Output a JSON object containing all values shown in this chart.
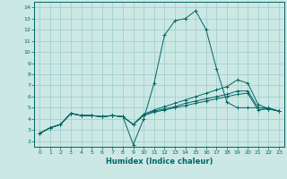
{
  "xlabel": "Humidex (Indice chaleur)",
  "bg_color": "#cce8e4",
  "grid_color": "#99cccc",
  "line_color": "#006666",
  "xlim": [
    -0.5,
    23.5
  ],
  "ylim": [
    1.5,
    14.5
  ],
  "xticks": [
    0,
    1,
    2,
    3,
    4,
    5,
    6,
    7,
    8,
    9,
    10,
    11,
    12,
    13,
    14,
    15,
    16,
    17,
    18,
    19,
    20,
    21,
    22,
    23
  ],
  "yticks": [
    2,
    3,
    4,
    5,
    6,
    7,
    8,
    9,
    10,
    11,
    12,
    13,
    14
  ],
  "lines": [
    {
      "x": [
        0,
        1,
        2,
        3,
        4,
        5,
        6,
        7,
        8,
        9,
        10,
        11,
        12,
        13,
        14,
        15,
        16,
        17,
        18,
        19,
        20,
        21,
        22,
        23
      ],
      "y": [
        2.7,
        3.2,
        3.5,
        4.5,
        4.3,
        4.3,
        4.2,
        4.3,
        4.2,
        1.7,
        4.0,
        7.2,
        11.5,
        12.8,
        13.0,
        13.7,
        12.0,
        8.5,
        5.5,
        5.0,
        5.0,
        5.0,
        5.0,
        4.7
      ]
    },
    {
      "x": [
        0,
        1,
        2,
        3,
        4,
        5,
        6,
        7,
        8,
        9,
        10,
        11,
        12,
        13,
        14,
        15,
        16,
        17,
        18,
        19,
        20,
        21,
        22,
        23
      ],
      "y": [
        2.7,
        3.2,
        3.5,
        4.5,
        4.3,
        4.3,
        4.2,
        4.3,
        4.2,
        3.5,
        4.4,
        4.8,
        5.1,
        5.4,
        5.7,
        6.0,
        6.3,
        6.6,
        6.9,
        7.5,
        7.2,
        5.3,
        4.9,
        4.7
      ]
    },
    {
      "x": [
        0,
        1,
        2,
        3,
        4,
        5,
        6,
        7,
        8,
        9,
        10,
        11,
        12,
        13,
        14,
        15,
        16,
        17,
        18,
        19,
        20,
        21,
        22,
        23
      ],
      "y": [
        2.7,
        3.2,
        3.5,
        4.5,
        4.3,
        4.3,
        4.2,
        4.3,
        4.2,
        3.5,
        4.4,
        4.7,
        4.9,
        5.1,
        5.4,
        5.6,
        5.8,
        6.0,
        6.2,
        6.5,
        6.5,
        5.0,
        4.9,
        4.7
      ]
    },
    {
      "x": [
        0,
        1,
        2,
        3,
        4,
        5,
        6,
        7,
        8,
        9,
        10,
        11,
        12,
        13,
        14,
        15,
        16,
        17,
        18,
        19,
        20,
        21,
        22,
        23
      ],
      "y": [
        2.7,
        3.2,
        3.5,
        4.5,
        4.3,
        4.3,
        4.2,
        4.3,
        4.2,
        3.5,
        4.3,
        4.6,
        4.8,
        5.0,
        5.2,
        5.4,
        5.6,
        5.8,
        6.0,
        6.2,
        6.3,
        4.8,
        4.9,
        4.7
      ]
    }
  ]
}
